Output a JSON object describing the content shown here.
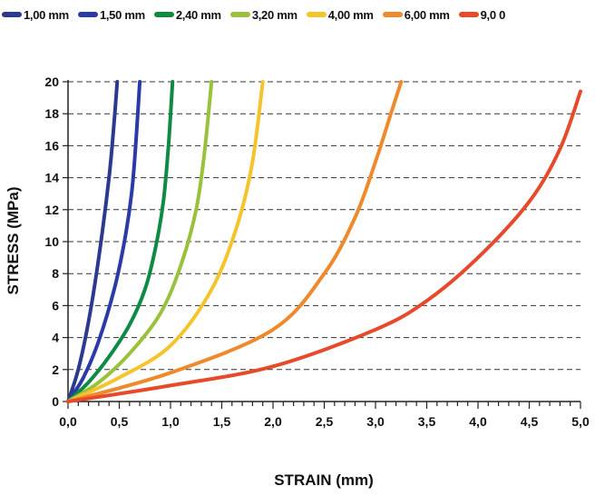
{
  "chart_data": {
    "type": "line",
    "title": "",
    "xlabel": "STRAIN (mm)",
    "ylabel": "STRESS (MPa)",
    "xlim": [
      0,
      5
    ],
    "ylim": [
      0,
      20
    ],
    "x_ticks": [
      "0,0",
      "0,5",
      "1,0",
      "1,5",
      "2,0",
      "2,5",
      "3,0",
      "3,5",
      "4,0",
      "4,5",
      "5,0"
    ],
    "y_ticks": [
      "0",
      "2",
      "4",
      "6",
      "8",
      "10",
      "12",
      "14",
      "16",
      "18",
      "20"
    ],
    "grid": "horizontal dashed",
    "legend_position": "top",
    "series": [
      {
        "name": "1,00 mm",
        "color": "#2b3a8f",
        "x": [
          0,
          0.1,
          0.2,
          0.3,
          0.4,
          0.45,
          0.48
        ],
        "y": [
          0,
          2,
          5,
          9,
          14,
          17.5,
          20
        ]
      },
      {
        "name": "1,50 mm",
        "color": "#2a3aa6",
        "x": [
          0,
          0.15,
          0.3,
          0.45,
          0.55,
          0.62,
          0.66,
          0.7
        ],
        "y": [
          0,
          1.5,
          3.8,
          7,
          10,
          13,
          16,
          20
        ]
      },
      {
        "name": "2,40 mm",
        "color": "#0f8a45",
        "x": [
          0,
          0.2,
          0.4,
          0.6,
          0.75,
          0.85,
          0.93,
          0.98,
          1.02
        ],
        "y": [
          0,
          1.2,
          2.8,
          4.8,
          7,
          9.5,
          12.5,
          16,
          20
        ]
      },
      {
        "name": "3,20 mm",
        "color": "#9ac13c",
        "x": [
          0,
          0.3,
          0.6,
          0.9,
          1.1,
          1.25,
          1.33,
          1.4
        ],
        "y": [
          0,
          1.2,
          3,
          5.5,
          8.5,
          12,
          15.5,
          20
        ]
      },
      {
        "name": "4,00 mm",
        "color": "#f5c32c",
        "x": [
          0,
          0.5,
          1.0,
          1.4,
          1.65,
          1.8,
          1.9
        ],
        "y": [
          0,
          1.5,
          3.5,
          7,
          11,
          15,
          20
        ]
      },
      {
        "name": "6,00 mm",
        "color": "#ee8a2c",
        "x": [
          0,
          1.0,
          2.0,
          2.5,
          2.8,
          3.0,
          3.15,
          3.25
        ],
        "y": [
          0,
          1.8,
          4.5,
          8,
          11.5,
          15,
          18,
          20
        ]
      },
      {
        "name": "9,0 0",
        "color": "#e64a2b",
        "x": [
          0,
          1.0,
          2.0,
          3.0,
          3.5,
          4.0,
          4.5,
          4.8,
          5.0
        ],
        "y": [
          0,
          1.0,
          2.2,
          4.5,
          6.3,
          9,
          12.5,
          15.8,
          19.4
        ]
      }
    ]
  }
}
